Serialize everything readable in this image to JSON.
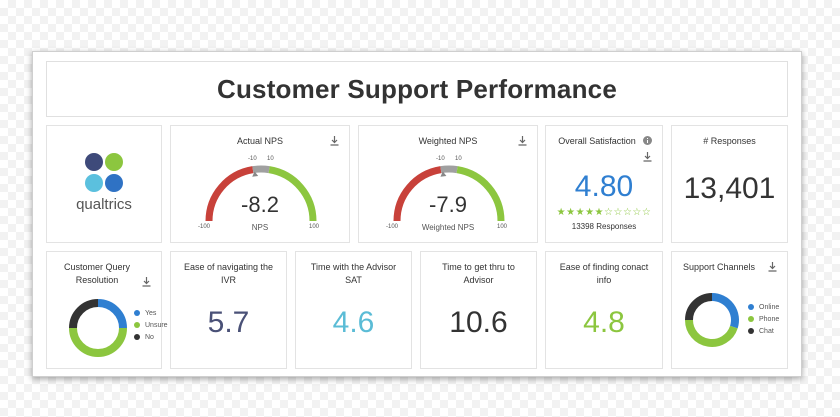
{
  "title": "Customer Support Performance",
  "logo": {
    "text": "qualtrics",
    "colors": [
      "#3e4a7a",
      "#8cc63f",
      "#5bc0de",
      "#2f72c4"
    ]
  },
  "colors": {
    "red": "#c8413a",
    "green": "#8cc63f",
    "gray": "#a0a0a0",
    "blue": "#2f7fd1",
    "teal": "#5bbcd6",
    "navy": "#4a5177",
    "dark": "#333333"
  },
  "actual_nps": {
    "title": "Actual NPS",
    "value": "-8.2",
    "label": "NPS",
    "min": "-100",
    "max": "100",
    "tick_low": "-10",
    "tick_high": "10",
    "score": -8.2
  },
  "weighted_nps": {
    "title": "Weighted NPS",
    "value": "-7.9",
    "label": "Weighted NPS",
    "min": "-100",
    "max": "100",
    "tick_low": "-10",
    "tick_high": "10",
    "score": -7.9
  },
  "overall_satisfaction": {
    "title": "Overall Satisfaction",
    "value": "4.80",
    "stars_filled": 5,
    "stars_total": 10,
    "responses": "13398 Responses"
  },
  "responses": {
    "title": "# Responses",
    "value": "13,401"
  },
  "query_resolution": {
    "title": "Customer Query Resolution",
    "legend": [
      {
        "label": "Yes",
        "color": "#2f7fd1",
        "share": 0.25
      },
      {
        "label": "Unsure",
        "color": "#8cc63f",
        "share": 0.5
      },
      {
        "label": "No",
        "color": "#333333",
        "share": 0.25
      }
    ]
  },
  "ivr": {
    "title": "Ease of navigating the IVR",
    "value": "5.7"
  },
  "advisor_time": {
    "title": "Time with the Advisor SAT",
    "value": "4.6"
  },
  "thru_time": {
    "title": "Time to get thru to Advisor",
    "value": "10.6"
  },
  "contact_info": {
    "title": "Ease of finding conact info",
    "value": "4.8"
  },
  "support_channels": {
    "title": "Support Channels",
    "legend": [
      {
        "label": "Online",
        "color": "#2f7fd1",
        "share": 0.3
      },
      {
        "label": "Phone",
        "color": "#8cc63f",
        "share": 0.45
      },
      {
        "label": "Chat",
        "color": "#333333",
        "share": 0.25
      }
    ]
  }
}
